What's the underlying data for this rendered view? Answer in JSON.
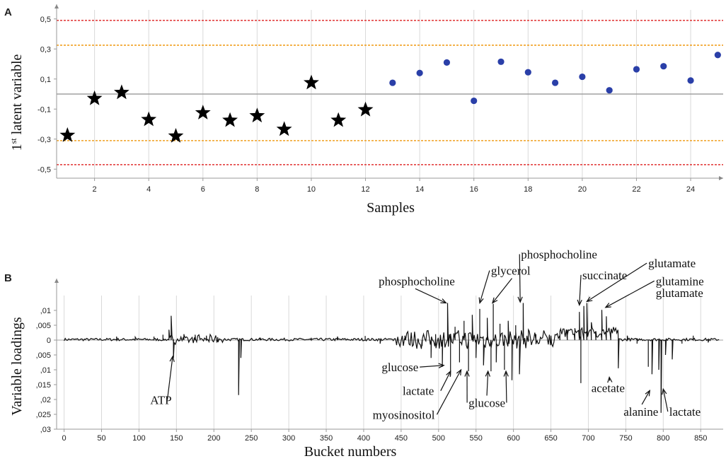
{
  "chart_data": [
    {
      "panel_label": "A",
      "type": "scatter",
      "xlabel": "Samples",
      "ylabel_main": "1",
      "ylabel_sup": "st",
      "ylabel_rest": " latent variable",
      "xlim": [
        0.6,
        25.2
      ],
      "ylim": [
        -0.56,
        0.56
      ],
      "x_ticks": [
        2,
        4,
        6,
        8,
        10,
        12,
        14,
        16,
        18,
        20,
        22,
        24
      ],
      "x_tick_labels": [
        "2",
        "4",
        "6",
        "8",
        "10",
        "12",
        "14",
        "16",
        "18",
        "20",
        "22",
        "24"
      ],
      "y_ticks": [
        0.5,
        0.3,
        0.1,
        -0.1,
        -0.3,
        -0.5
      ],
      "y_tick_labels": [
        "0,5",
        "0,3",
        "0,1",
        "-0,1",
        "-0,3",
        "-0,5"
      ],
      "grid": "vertical",
      "reference_lines": [
        {
          "y": 0.49,
          "color": "#e03030",
          "style": "dashed"
        },
        {
          "y": 0.325,
          "color": "#f0a020",
          "style": "dashed"
        },
        {
          "y": 0.0,
          "color": "#a0a0a0",
          "style": "solid"
        },
        {
          "y": -0.31,
          "color": "#f0a020",
          "style": "dashed"
        },
        {
          "y": -0.47,
          "color": "#e03030",
          "style": "dashed"
        }
      ],
      "series": [
        {
          "marker": "star",
          "color": "#000000",
          "x": [
            1,
            2,
            3,
            4,
            5,
            6,
            7,
            8,
            9,
            10,
            11,
            12
          ],
          "y": [
            -0.275,
            -0.03,
            0.01,
            -0.17,
            -0.28,
            -0.125,
            -0.175,
            -0.145,
            -0.235,
            0.075,
            -0.175,
            -0.105
          ]
        },
        {
          "marker": "circle",
          "color": "#2a3fa8",
          "x": [
            13,
            14,
            15,
            16,
            17,
            18,
            19,
            20,
            21,
            22,
            23,
            24,
            25
          ],
          "y": [
            0.075,
            0.14,
            0.21,
            -0.045,
            0.215,
            0.145,
            0.075,
            0.115,
            0.025,
            0.165,
            0.185,
            0.09,
            0.26
          ]
        }
      ]
    },
    {
      "panel_label": "B",
      "type": "line",
      "xlabel": "Bucket numbers",
      "ylabel": "Variable loadings",
      "xlim": [
        -10,
        880
      ],
      "ylim": [
        -0.03,
        0.015
      ],
      "x_ticks": [
        0,
        50,
        100,
        150,
        200,
        250,
        300,
        350,
        400,
        450,
        500,
        550,
        600,
        650,
        700,
        750,
        800,
        850
      ],
      "x_tick_labels": [
        "0",
        "50",
        "100",
        "150",
        "200",
        "250",
        "300",
        "350",
        "400",
        "450",
        "500",
        "550",
        "600",
        "650",
        "700",
        "750",
        "800",
        "850"
      ],
      "y_ticks": [
        0.01,
        0.005,
        0,
        -0.005,
        -0.01,
        -0.015,
        -0.02,
        -0.025,
        -0.03
      ],
      "y_tick_labels": [
        ",01",
        ",005",
        "0",
        ",005",
        ",01",
        ",015",
        ",02",
        ",025",
        ",03"
      ],
      "grid": "vertical",
      "peaks": [
        {
          "x": 70,
          "y": 0.0012
        },
        {
          "x": 95,
          "y": 0.001
        },
        {
          "x": 120,
          "y": 0.0012
        },
        {
          "x": 132,
          "y": 0.0018
        },
        {
          "x": 140,
          "y": 0.0035
        },
        {
          "x": 143,
          "y": 0.0082
        },
        {
          "x": 146,
          "y": -0.006
        },
        {
          "x": 160,
          "y": 0.002
        },
        {
          "x": 175,
          "y": 0.0018
        },
        {
          "x": 190,
          "y": 0.0015
        },
        {
          "x": 205,
          "y": 0.001
        },
        {
          "x": 233,
          "y": -0.0185
        },
        {
          "x": 236,
          "y": -0.006
        },
        {
          "x": 262,
          "y": 0.0008
        },
        {
          "x": 330,
          "y": 0.0008
        },
        {
          "x": 365,
          "y": 0.0012
        },
        {
          "x": 402,
          "y": 0.0014
        },
        {
          "x": 422,
          "y": -0.0012
        },
        {
          "x": 455,
          "y": 0.0015
        },
        {
          "x": 478,
          "y": -0.002
        },
        {
          "x": 490,
          "y": -0.006
        },
        {
          "x": 496,
          "y": 0.002
        },
        {
          "x": 505,
          "y": -0.009
        },
        {
          "x": 512,
          "y": 0.0125
        },
        {
          "x": 516,
          "y": -0.012
        },
        {
          "x": 522,
          "y": 0.0045
        },
        {
          "x": 528,
          "y": -0.0075
        },
        {
          "x": 534,
          "y": 0.0065
        },
        {
          "x": 540,
          "y": -0.0105
        },
        {
          "x": 545,
          "y": 0.0085
        },
        {
          "x": 550,
          "y": -0.006
        },
        {
          "x": 555,
          "y": 0.0105
        },
        {
          "x": 560,
          "y": -0.0085
        },
        {
          "x": 565,
          "y": 0.0075
        },
        {
          "x": 570,
          "y": -0.0105
        },
        {
          "x": 573,
          "y": 0.0122
        },
        {
          "x": 577,
          "y": -0.0075
        },
        {
          "x": 582,
          "y": 0.0055
        },
        {
          "x": 588,
          "y": -0.01
        },
        {
          "x": 593,
          "y": 0.0065
        },
        {
          "x": 598,
          "y": -0.0135
        },
        {
          "x": 603,
          "y": 0.005
        },
        {
          "x": 608,
          "y": -0.0115
        },
        {
          "x": 613,
          "y": 0.0125
        },
        {
          "x": 620,
          "y": 0.0035
        },
        {
          "x": 630,
          "y": 0.002
        },
        {
          "x": 650,
          "y": 0.0015
        },
        {
          "x": 662,
          "y": 0.003
        },
        {
          "x": 672,
          "y": 0.0035
        },
        {
          "x": 682,
          "y": 0.004
        },
        {
          "x": 688,
          "y": 0.0095
        },
        {
          "x": 690,
          "y": -0.0145
        },
        {
          "x": 694,
          "y": 0.0115
        },
        {
          "x": 698,
          "y": 0.0125
        },
        {
          "x": 704,
          "y": 0.006
        },
        {
          "x": 710,
          "y": 0.003
        },
        {
          "x": 718,
          "y": 0.0102
        },
        {
          "x": 724,
          "y": 0.008
        },
        {
          "x": 730,
          "y": 0.002
        },
        {
          "x": 740,
          "y": -0.0095
        },
        {
          "x": 752,
          "y": 0.0015
        },
        {
          "x": 765,
          "y": -0.0012
        },
        {
          "x": 780,
          "y": -0.009
        },
        {
          "x": 785,
          "y": -0.0115
        },
        {
          "x": 794,
          "y": -0.01
        },
        {
          "x": 797,
          "y": -0.0245
        },
        {
          "x": 803,
          "y": -0.005
        },
        {
          "x": 812,
          "y": -0.0065
        },
        {
          "x": 825,
          "y": -0.0012
        },
        {
          "x": 840,
          "y": 0.0015
        },
        {
          "x": 860,
          "y": -0.0008
        }
      ],
      "annotations": [
        {
          "text": "ATP",
          "tx": 115,
          "ty": -0.0215,
          "ax": 145,
          "ay": -0.0055
        },
        {
          "text": "phosphocholine",
          "tx": 420,
          "ty": 0.0185,
          "ax": 510,
          "ay": 0.0125
        },
        {
          "text": "glycerol",
          "tx": 570,
          "ty": 0.022,
          "ax": 555,
          "ay": 0.0125,
          "ax2": 572,
          "ay2": 0.0125
        },
        {
          "text": "phosphocholine",
          "tx": 610,
          "ty": 0.0275,
          "ax": 609,
          "ay": 0.0128
        },
        {
          "text": "succinate",
          "tx": 692,
          "ty": 0.0205,
          "ax": 688,
          "ay": 0.0118
        },
        {
          "text": "glutamate",
          "tx": 780,
          "ty": 0.0245,
          "ax": 698,
          "ay": 0.013
        },
        {
          "text": "glutamine",
          "tx": 790,
          "ty": 0.0185,
          "ax": 723,
          "ay": 0.011
        },
        {
          "text": "glutamate",
          "tx": 790,
          "ty": 0.0145
        },
        {
          "text": "glucose",
          "tx": 424,
          "ty": -0.0105,
          "ax": 507,
          "ay": -0.0085
        },
        {
          "text": "lactate",
          "tx": 452,
          "ty": -0.0185,
          "ax": 516,
          "ay": -0.0105
        },
        {
          "text": "myosinositol",
          "tx": 412,
          "ty": -0.0265,
          "ax": 530,
          "ay": -0.01
        },
        {
          "text": "glucose",
          "tx": 540,
          "ty": -0.0225,
          "ax": 538,
          "ay": -0.0105,
          "ax2": 566,
          "ay2": -0.0105,
          "ax3": 590,
          "ay3": -0.0105
        },
        {
          "text": "acetate",
          "tx": 704,
          "ty": -0.0175,
          "ax": 728,
          "ay": -0.0125
        },
        {
          "text": "alanine",
          "tx": 747,
          "ty": -0.0255,
          "ax": 782,
          "ay": -0.017
        },
        {
          "text": "lactate",
          "tx": 808,
          "ty": -0.0255,
          "ax": 800,
          "ay": -0.0165
        }
      ]
    }
  ]
}
